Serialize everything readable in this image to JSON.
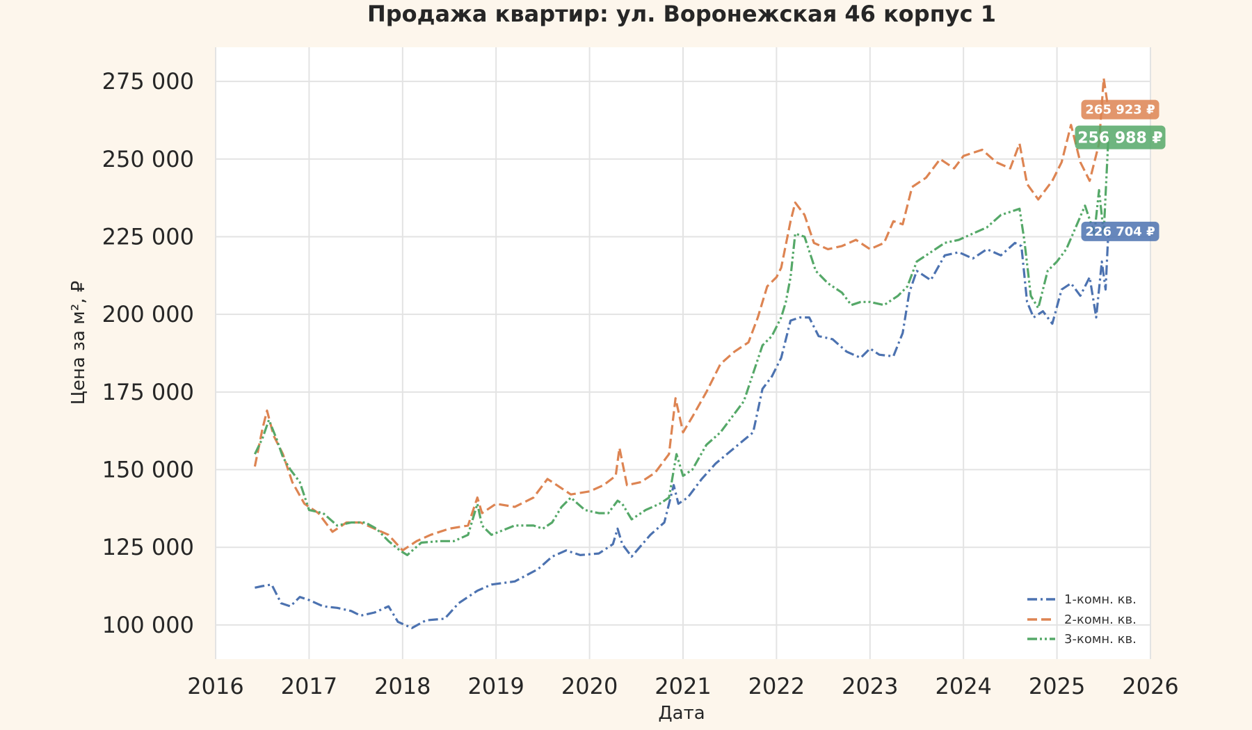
{
  "chart_data": {
    "type": "line",
    "title": "Продажа квартир: ул. Воронежская 46 корпус 1",
    "xlabel": "Дата",
    "ylabel": "Цена за м², ₽",
    "xlim": [
      2016,
      2026
    ],
    "ylim": [
      89000,
      286000
    ],
    "x_ticks": [
      "2016",
      "2017",
      "2018",
      "2019",
      "2020",
      "2021",
      "2022",
      "2023",
      "2024",
      "2025",
      "2026"
    ],
    "y_ticks": [
      {
        "value": 100000,
        "label": "100 000"
      },
      {
        "value": 125000,
        "label": "125 000"
      },
      {
        "value": 150000,
        "label": "150 000"
      },
      {
        "value": 175000,
        "label": "175 000"
      },
      {
        "value": 200000,
        "label": "200 000"
      },
      {
        "value": 225000,
        "label": "225 000"
      },
      {
        "value": 250000,
        "label": "250 000"
      },
      {
        "value": 275000,
        "label": "275 000"
      }
    ],
    "grid": true,
    "legend_position": "bottom-right",
    "series": [
      {
        "name": "1-комн. кв.",
        "color": "#4c72b0",
        "dash": "dashdot",
        "end_label": "226 704 ₽",
        "x": [
          2016.42,
          2016.5,
          2016.6,
          2016.7,
          2016.8,
          2016.9,
          2017.0,
          2017.15,
          2017.3,
          2017.45,
          2017.55,
          2017.7,
          2017.85,
          2017.95,
          2018.1,
          2018.25,
          2018.45,
          2018.6,
          2018.8,
          2018.95,
          2019.2,
          2019.45,
          2019.6,
          2019.75,
          2019.9,
          2020.1,
          2020.25,
          2020.3,
          2020.35,
          2020.45,
          2020.65,
          2020.8,
          2020.9,
          2020.95,
          2021.05,
          2021.2,
          2021.35,
          2021.55,
          2021.75,
          2021.85,
          2021.95,
          2022.05,
          2022.15,
          2022.25,
          2022.35,
          2022.45,
          2022.6,
          2022.75,
          2022.9,
          2023.0,
          2023.1,
          2023.25,
          2023.35,
          2023.42,
          2023.5,
          2023.65,
          2023.8,
          2023.95,
          2024.1,
          2024.25,
          2024.4,
          2024.55,
          2024.62,
          2024.68,
          2024.75,
          2024.85,
          2024.95,
          2025.05,
          2025.15,
          2025.25,
          2025.35,
          2025.42,
          2025.48,
          2025.52,
          2025.55
        ],
        "y": [
          112000,
          112500,
          113000,
          107000,
          106000,
          109000,
          108000,
          106000,
          105500,
          104500,
          103000,
          104000,
          106000,
          101000,
          99000,
          101500,
          102000,
          107000,
          111000,
          113000,
          114000,
          118000,
          122000,
          124000,
          122500,
          123000,
          126000,
          131000,
          126000,
          122000,
          129000,
          133000,
          145000,
          139000,
          141000,
          147000,
          152000,
          157000,
          162000,
          176000,
          180000,
          186000,
          198000,
          199000,
          199000,
          193000,
          192000,
          188000,
          186000,
          189000,
          187000,
          186500,
          194000,
          207000,
          214000,
          211000,
          219000,
          220000,
          218000,
          221000,
          219000,
          223000,
          222000,
          204000,
          199000,
          201000,
          197000,
          208000,
          210000,
          206000,
          212000,
          199000,
          217000,
          208000,
          226704
        ]
      },
      {
        "name": "2-комн. кв.",
        "color": "#dd8452",
        "dash": "dashed",
        "end_label": "265 923 ₽",
        "x": [
          2016.42,
          2016.5,
          2016.55,
          2016.62,
          2016.72,
          2016.82,
          2016.95,
          2017.1,
          2017.25,
          2017.4,
          2017.55,
          2017.7,
          2017.85,
          2018.0,
          2018.15,
          2018.3,
          2018.5,
          2018.7,
          2018.8,
          2018.85,
          2019.0,
          2019.2,
          2019.4,
          2019.55,
          2019.65,
          2019.8,
          2020.0,
          2020.15,
          2020.28,
          2020.32,
          2020.4,
          2020.55,
          2020.7,
          2020.85,
          2020.92,
          2021.0,
          2021.1,
          2021.25,
          2021.4,
          2021.55,
          2021.7,
          2021.8,
          2021.9,
          2022.0,
          2022.05,
          2022.15,
          2022.2,
          2022.3,
          2022.4,
          2022.55,
          2022.7,
          2022.85,
          2023.0,
          2023.15,
          2023.25,
          2023.35,
          2023.45,
          2023.6,
          2023.75,
          2023.9,
          2024.0,
          2024.2,
          2024.35,
          2024.5,
          2024.6,
          2024.68,
          2024.8,
          2024.95,
          2025.05,
          2025.15,
          2025.25,
          2025.35,
          2025.45,
          2025.5,
          2025.55
        ],
        "y": [
          151000,
          163000,
          169000,
          161000,
          155000,
          146000,
          139000,
          136000,
          130000,
          133000,
          133000,
          131000,
          129000,
          124000,
          127000,
          129000,
          131000,
          132000,
          141000,
          136000,
          139000,
          138000,
          141000,
          147000,
          145000,
          142000,
          143000,
          145000,
          148000,
          157000,
          145000,
          146000,
          149000,
          155000,
          173000,
          162000,
          167000,
          175000,
          184000,
          188000,
          191000,
          199000,
          209000,
          212000,
          215000,
          230000,
          236000,
          232000,
          223000,
          221000,
          222000,
          224000,
          221000,
          223000,
          230000,
          229000,
          241000,
          244000,
          250000,
          247000,
          251000,
          253000,
          249000,
          247000,
          255000,
          242000,
          237000,
          243000,
          249000,
          261000,
          249000,
          243000,
          255000,
          276000,
          265923
        ]
      },
      {
        "name": "3-комн. кв.",
        "color": "#55a868",
        "dash": "dashdotdot",
        "end_label": "256 988 ₽",
        "x": [
          2016.42,
          2016.5,
          2016.57,
          2016.65,
          2016.72,
          2016.8,
          2016.9,
          2017.0,
          2017.15,
          2017.3,
          2017.45,
          2017.6,
          2017.72,
          2017.85,
          2017.97,
          2018.05,
          2018.2,
          2018.4,
          2018.55,
          2018.7,
          2018.8,
          2018.85,
          2018.95,
          2019.2,
          2019.4,
          2019.5,
          2019.6,
          2019.7,
          2019.8,
          2019.95,
          2020.1,
          2020.2,
          2020.3,
          2020.35,
          2020.45,
          2020.6,
          2020.75,
          2020.85,
          2020.93,
          2021.0,
          2021.1,
          2021.25,
          2021.4,
          2021.5,
          2021.65,
          2021.75,
          2021.85,
          2021.95,
          2022.05,
          2022.1,
          2022.15,
          2022.2,
          2022.3,
          2022.42,
          2022.55,
          2022.7,
          2022.8,
          2022.9,
          2023.0,
          2023.15,
          2023.3,
          2023.4,
          2023.5,
          2023.65,
          2023.8,
          2023.95,
          2024.1,
          2024.25,
          2024.4,
          2024.5,
          2024.6,
          2024.65,
          2024.72,
          2024.8,
          2024.9,
          2025.0,
          2025.1,
          2025.2,
          2025.3,
          2025.4,
          2025.45,
          2025.5,
          2025.55
        ],
        "y": [
          155000,
          160000,
          166000,
          160000,
          154000,
          150000,
          146000,
          137000,
          136000,
          132000,
          133000,
          133000,
          131000,
          127000,
          124000,
          122500,
          126500,
          127000,
          127000,
          129000,
          139000,
          132000,
          129000,
          132000,
          132000,
          131000,
          133000,
          138000,
          141000,
          137000,
          136000,
          136000,
          140000,
          139000,
          134000,
          137000,
          139000,
          141000,
          155000,
          148000,
          150000,
          158000,
          162000,
          166000,
          172000,
          181000,
          190000,
          193000,
          199000,
          204000,
          212000,
          226000,
          225000,
          214000,
          210000,
          207000,
          203000,
          204000,
          204000,
          203000,
          206000,
          209000,
          217000,
          220000,
          223000,
          224000,
          226000,
          228000,
          232000,
          233000,
          234000,
          224000,
          206000,
          202000,
          214000,
          217000,
          221000,
          228000,
          235000,
          226000,
          240000,
          226000,
          256988
        ]
      }
    ]
  }
}
